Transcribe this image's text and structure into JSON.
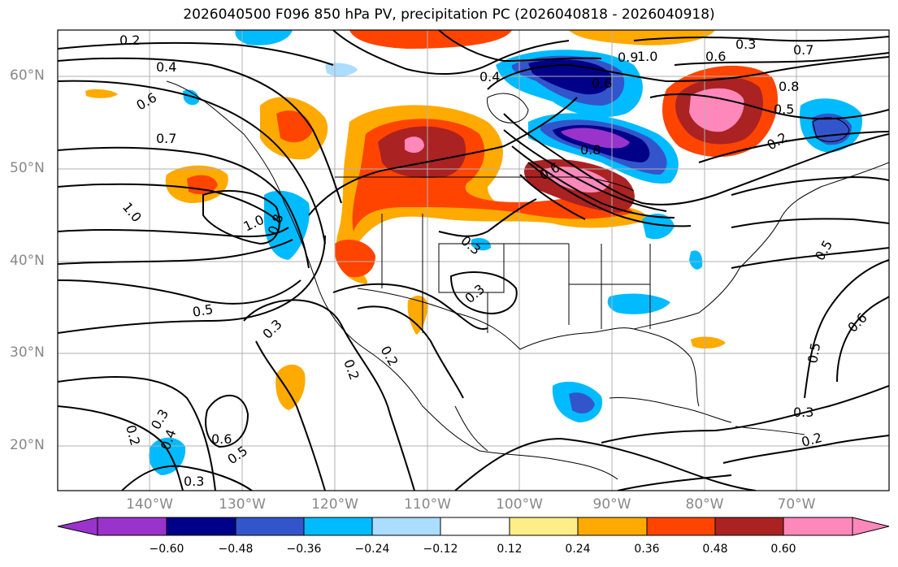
{
  "title": "2026040500 F096 850 hPa PV, precipitation PC (2026040818 - 2026040918)",
  "latitude_labels": [
    "60°N",
    "50°N",
    "40°N",
    "30°N",
    "20°N"
  ],
  "longitude_labels": [
    "140°W",
    "130°W",
    "120°W",
    "110°W",
    "100°W",
    "90°W",
    "80°W",
    "70°W"
  ],
  "colorbar": {
    "ticks": [
      "−0.60",
      "−0.48",
      "−0.36",
      "−0.24",
      "−0.12",
      "0.12",
      "0.24",
      "0.36",
      "0.48",
      "0.60"
    ],
    "colors": [
      "#9933cc",
      "#000088",
      "#3355cc",
      "#00bbff",
      "#aaddff",
      "#ffffff",
      "#ffee88",
      "#ffaa00",
      "#ff4400",
      "#aa2222",
      "#ff88bb"
    ]
  },
  "contour_labels": [
    "0.2",
    "0.4",
    "0.6",
    "0.7",
    "1.0",
    "1.0",
    "0.8",
    "0.5",
    "0.3",
    "0.2",
    "0.3",
    "0.6",
    "0.5",
    "0.4",
    "0.3",
    "0.2",
    "0.3",
    "0.4",
    "0.6",
    "1.0",
    "0.9",
    "0.8",
    "0.5",
    "0.2",
    "0.7",
    "0.8",
    "0.6",
    "0.5",
    "0.6",
    "0.5",
    "0.3",
    "0.2",
    "0.3",
    "0.2",
    "0.6",
    "0.3"
  ],
  "chart_data": {
    "type": "map",
    "title": "2026040500 F096 850 hPa PV, precipitation PC (2026040818 - 2026040918)",
    "lon_range": [
      -150,
      -60
    ],
    "lat_range": [
      15,
      65
    ],
    "contour_levels": [
      0.2,
      0.3,
      0.4,
      0.5,
      0.6,
      0.7,
      0.8,
      0.9,
      1.0
    ],
    "color_levels": [
      -0.6,
      -0.48,
      -0.36,
      -0.24,
      -0.12,
      0.12,
      0.24,
      0.36,
      0.48,
      0.6
    ]
  }
}
